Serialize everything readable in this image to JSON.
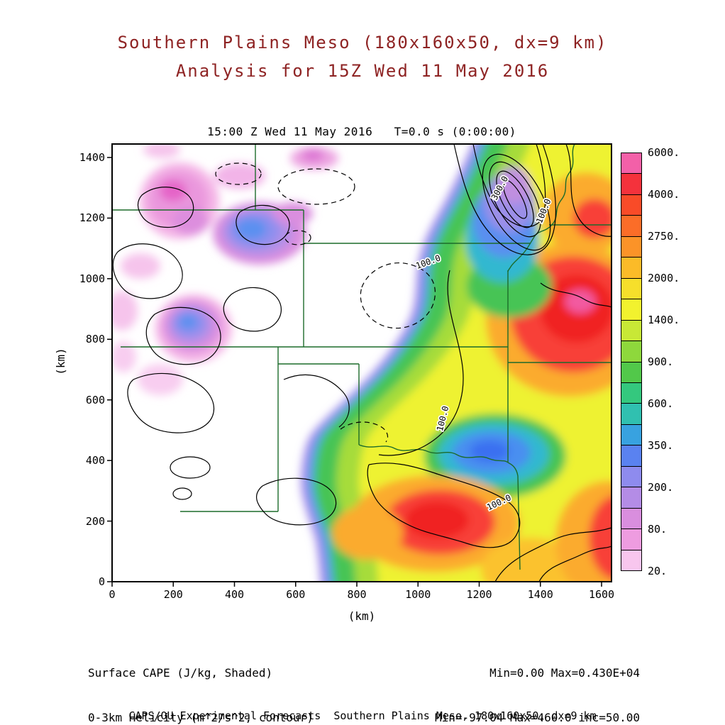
{
  "title": {
    "line1": "Southern Plains Meso (180x160x50, dx=9 km)",
    "line2": "Analysis for 15Z Wed 11 May 2016"
  },
  "map": {
    "header": "15:00 Z Wed 11 May 2016   T=0.0 s (0:00:00)"
  },
  "axes": {
    "x_label": "(km)",
    "y_label": "(km)",
    "x_ticks": [
      "0",
      "200",
      "400",
      "600",
      "800",
      "1000",
      "1200",
      "1400",
      "1600"
    ],
    "y_ticks": [
      "0",
      "200",
      "400",
      "600",
      "800",
      "1000",
      "1200",
      "1400"
    ]
  },
  "colorbar": {
    "labels": [
      "6000.",
      "4000.",
      "2750.",
      "2000.",
      "1400.",
      "900.",
      "600.",
      "350.",
      "200.",
      "80.",
      "20."
    ],
    "colors_top_to_bottom": [
      "#f360a8",
      "#f4323c",
      "#f94b28",
      "#fb6d28",
      "#fb9328",
      "#fbbb28",
      "#f6df2b",
      "#f2f22e",
      "#c8e836",
      "#8ed83c",
      "#52c84a",
      "#34c87e",
      "#30c0b0",
      "#38a2e0",
      "#5a82f0",
      "#8e8bee",
      "#b48ce6",
      "#d98ede",
      "#ee9ce0",
      "#f8c6ee"
    ]
  },
  "contour_labels": {
    "l100": "100.0",
    "l300": "300.0"
  },
  "legend": {
    "shaded_label": "Surface CAPE (J/kg, Shaded)",
    "contour_label": "0-3km Helicity (m^2/s^2, contour)",
    "shaded_stats": "Min=0.00 Max=0.430E+04",
    "contour_stats": "Min=-97.04 Max=460.0 inc=50.00"
  },
  "footer": "CAPS/OU Experimental Forecasts  Southern Plains Meso, 180x160x50, dx=9 km",
  "chart_data": {
    "type": "heatmap",
    "title": "Southern Plains Meso (180x160x50, dx=9 km) - Analysis for 15Z Wed 11 May 2016",
    "valid_time": "15:00 Z Wed 11 May 2016",
    "forecast_time": "T=0.0 s (0:00:00)",
    "xlabel": "(km)",
    "ylabel": "(km)",
    "xlim": [
      0,
      1630
    ],
    "ylim": [
      0,
      1445
    ],
    "x_ticks": [
      0,
      200,
      400,
      600,
      800,
      1000,
      1200,
      1400,
      1600
    ],
    "y_ticks": [
      0,
      200,
      400,
      600,
      800,
      1000,
      1200,
      1400
    ],
    "grid": false,
    "shaded_field": {
      "name": "Surface CAPE",
      "units": "J/kg",
      "min": 0.0,
      "max": 4300.0,
      "levels": [
        20,
        50,
        80,
        140,
        200,
        270,
        350,
        470,
        600,
        740,
        900,
        1130,
        1400,
        1690,
        2000,
        2350,
        2750,
        3300,
        4000,
        5000,
        6000
      ],
      "colors_low_to_high": [
        "#f8c6ee",
        "#ee9ce0",
        "#d98ede",
        "#b48ce6",
        "#8e8bee",
        "#5a82f0",
        "#38a2e0",
        "#30c0b0",
        "#34c87e",
        "#52c84a",
        "#8ed83c",
        "#c8e836",
        "#f2f22e",
        "#f6df2b",
        "#fbbb28",
        "#fb9328",
        "#fb6d28",
        "#f94b28",
        "#f4323c",
        "#f360a8"
      ]
    },
    "contour_field": {
      "name": "0-3km Helicity",
      "units": "m^2/s^2",
      "min": -97.04,
      "max": 460.0,
      "interval": 50.0,
      "labeled_contours": [
        100.0,
        300.0
      ],
      "negative_contours": "dashed"
    },
    "notable_features": [
      {
        "desc": "CAPE maximum ~4300 J/kg (magenta core)",
        "x_km": 1500,
        "y_km": 900
      },
      {
        "desc": "Secondary CAPE maximum ~3500 J/kg",
        "x_km": 1070,
        "y_km": 200
      },
      {
        "desc": "Helicity maximum 460 m^2/s^2, tight concentric contours",
        "x_km": 1310,
        "y_km": 1270
      },
      {
        "desc": "Sharp western edge of CAPE plume (dryline gradient)",
        "x_km": 700,
        "y_km": 500
      },
      {
        "desc": "Low-CAPE pocket 200-350 J/kg inside plume",
        "x_km": 1240,
        "y_km": 425
      },
      {
        "desc": "Weak CAPE patches 20-350 J/kg over Colorado/Nebraska",
        "x_km": 250,
        "y_km": 1100
      }
    ]
  }
}
